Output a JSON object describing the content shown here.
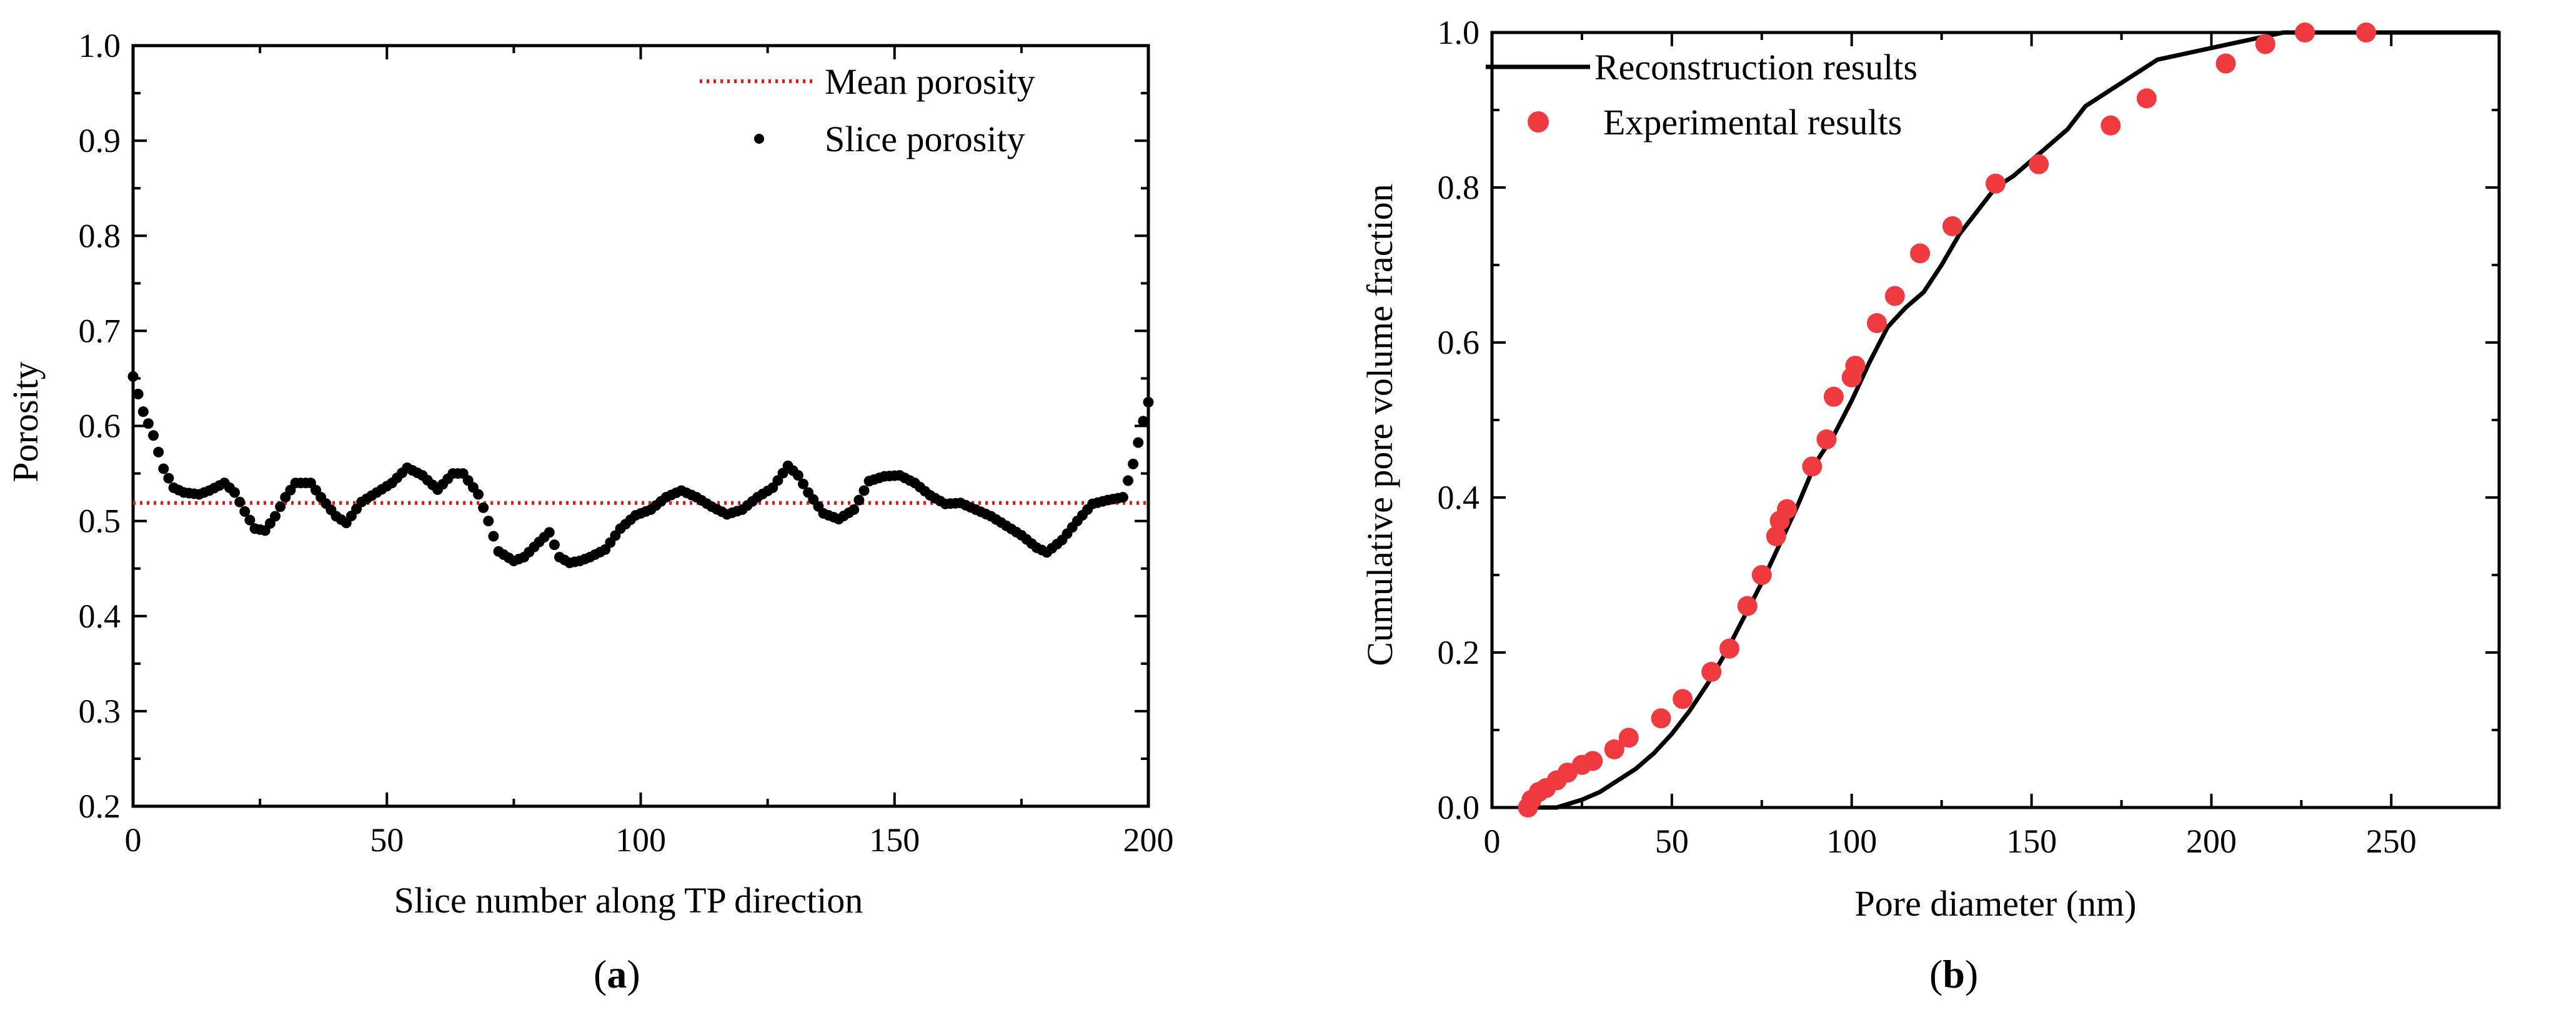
{
  "figure": {
    "panel_a_label": "(a)",
    "panel_b_label": "(b)"
  },
  "chart_data": [
    {
      "type": "scatter",
      "panel": "a",
      "title": "",
      "xlabel": "Slice number along TP direction",
      "ylabel": "Porosity",
      "xlim": [
        0,
        200
      ],
      "ylim": [
        0.2,
        1.0
      ],
      "xticks": [
        0,
        50,
        100,
        150,
        200
      ],
      "xtick_labels": [
        "0",
        "50",
        "100",
        "150",
        "200"
      ],
      "yticks": [
        0.2,
        0.3,
        0.4,
        0.5,
        0.6,
        0.7,
        0.8,
        0.9,
        1.0
      ],
      "ytick_labels": [
        "0.2",
        "0.3",
        "0.4",
        "0.5",
        "0.6",
        "0.7",
        "0.8",
        "0.9",
        "1.0"
      ],
      "grid": false,
      "legend_position": "top-right",
      "colors": {
        "mean_line": "#e0191f",
        "points": "#000000"
      },
      "mean_porosity": 0.519,
      "series": [
        {
          "name": "Mean porosity",
          "style": "dotted-line",
          "values": [
            0.519
          ]
        },
        {
          "name": "Slice porosity",
          "style": "points",
          "control_points": [
            [
              0,
              0.652
            ],
            [
              2,
              0.615
            ],
            [
              4,
              0.59
            ],
            [
              6,
              0.555
            ],
            [
              8,
              0.535
            ],
            [
              10,
              0.53
            ],
            [
              13,
              0.528
            ],
            [
              15,
              0.532
            ],
            [
              18,
              0.54
            ],
            [
              20,
              0.53
            ],
            [
              22,
              0.51
            ],
            [
              24,
              0.492
            ],
            [
              26,
              0.49
            ],
            [
              28,
              0.505
            ],
            [
              30,
              0.525
            ],
            [
              32,
              0.54
            ],
            [
              35,
              0.54
            ],
            [
              37,
              0.525
            ],
            [
              40,
              0.505
            ],
            [
              42,
              0.498
            ],
            [
              45,
              0.52
            ],
            [
              48,
              0.53
            ],
            [
              51,
              0.54
            ],
            [
              54,
              0.556
            ],
            [
              57,
              0.548
            ],
            [
              60,
              0.533
            ],
            [
              63,
              0.55
            ],
            [
              65,
              0.55
            ],
            [
              68,
              0.528
            ],
            [
              70,
              0.5
            ],
            [
              72,
              0.468
            ],
            [
              75,
              0.458
            ],
            [
              77,
              0.462
            ],
            [
              80,
              0.478
            ],
            [
              82,
              0.488
            ],
            [
              84,
              0.462
            ],
            [
              86,
              0.456
            ],
            [
              88,
              0.458
            ],
            [
              90,
              0.462
            ],
            [
              93,
              0.47
            ],
            [
              96,
              0.492
            ],
            [
              99,
              0.506
            ],
            [
              102,
              0.512
            ],
            [
              105,
              0.525
            ],
            [
              108,
              0.532
            ],
            [
              111,
              0.525
            ],
            [
              114,
              0.515
            ],
            [
              117,
              0.507
            ],
            [
              120,
              0.512
            ],
            [
              123,
              0.525
            ],
            [
              126,
              0.535
            ],
            [
              129,
              0.558
            ],
            [
              131,
              0.548
            ],
            [
              133,
              0.53
            ],
            [
              136,
              0.508
            ],
            [
              139,
              0.502
            ],
            [
              142,
              0.512
            ],
            [
              145,
              0.542
            ],
            [
              148,
              0.547
            ],
            [
              151,
              0.548
            ],
            [
              154,
              0.54
            ],
            [
              157,
              0.527
            ],
            [
              160,
              0.518
            ],
            [
              163,
              0.519
            ],
            [
              166,
              0.512
            ],
            [
              169,
              0.505
            ],
            [
              172,
              0.495
            ],
            [
              175,
              0.485
            ],
            [
              178,
              0.472
            ],
            [
              180,
              0.467
            ],
            [
              183,
              0.48
            ],
            [
              186,
              0.5
            ],
            [
              189,
              0.518
            ],
            [
              192,
              0.522
            ],
            [
              195,
              0.525
            ],
            [
              197,
              0.56
            ],
            [
              199,
              0.605
            ],
            [
              200,
              0.625
            ]
          ]
        }
      ]
    },
    {
      "type": "scatter",
      "panel": "b",
      "title": "",
      "xlabel": "Pore diameter (nm)",
      "ylabel": "Cumulative pore volume fraction",
      "xlim": [
        0,
        280
      ],
      "ylim": [
        0,
        1.0
      ],
      "xticks": [
        0,
        50,
        100,
        150,
        200,
        250
      ],
      "xtick_labels": [
        "0",
        "50",
        "100",
        "150",
        "200",
        "250"
      ],
      "yticks": [
        0.0,
        0.2,
        0.4,
        0.6,
        0.8,
        1.0
      ],
      "ytick_labels": [
        "0.0",
        "0.2",
        "0.4",
        "0.6",
        "0.8",
        "1.0"
      ],
      "grid": false,
      "legend_position": "top-left",
      "colors": {
        "line": "#000000",
        "points": "#ef3b3f"
      },
      "series": [
        {
          "name": "Reconstruction results",
          "style": "line",
          "x": [
            10,
            18,
            25,
            30,
            35,
            40,
            45,
            50,
            55,
            60,
            65,
            70,
            75,
            80,
            85,
            90,
            95,
            100,
            105,
            110,
            115,
            120,
            125,
            130,
            135,
            140,
            145,
            150,
            155,
            160,
            165,
            170,
            175,
            180,
            185,
            195,
            205,
            215,
            220,
            230,
            240,
            250,
            260,
            270,
            280
          ],
          "y": [
            0.0,
            0.0,
            0.01,
            0.02,
            0.035,
            0.05,
            0.07,
            0.095,
            0.125,
            0.16,
            0.2,
            0.245,
            0.29,
            0.34,
            0.39,
            0.445,
            0.48,
            0.525,
            0.575,
            0.62,
            0.645,
            0.665,
            0.7,
            0.74,
            0.77,
            0.8,
            0.815,
            0.835,
            0.855,
            0.875,
            0.905,
            0.92,
            0.935,
            0.95,
            0.965,
            0.975,
            0.985,
            0.995,
            1.0,
            1.0,
            1.0,
            1.0,
            1.0,
            1.0,
            1.0
          ]
        },
        {
          "name": "Experimental results",
          "style": "points",
          "x": [
            10,
            11,
            13,
            15,
            18,
            21,
            25,
            28,
            34,
            38,
            47,
            53,
            61,
            66,
            71,
            75,
            79,
            80,
            82,
            89,
            93,
            95,
            100,
            101,
            107,
            112,
            119,
            128,
            140,
            152,
            172,
            182,
            204,
            215,
            226,
            243
          ],
          "y": [
            0.0,
            0.01,
            0.02,
            0.025,
            0.035,
            0.045,
            0.055,
            0.06,
            0.075,
            0.09,
            0.115,
            0.14,
            0.175,
            0.205,
            0.26,
            0.3,
            0.35,
            0.37,
            0.385,
            0.44,
            0.475,
            0.53,
            0.555,
            0.57,
            0.625,
            0.66,
            0.715,
            0.75,
            0.805,
            0.83,
            0.88,
            0.915,
            0.96,
            0.985,
            1.0,
            1.0
          ]
        }
      ]
    }
  ]
}
